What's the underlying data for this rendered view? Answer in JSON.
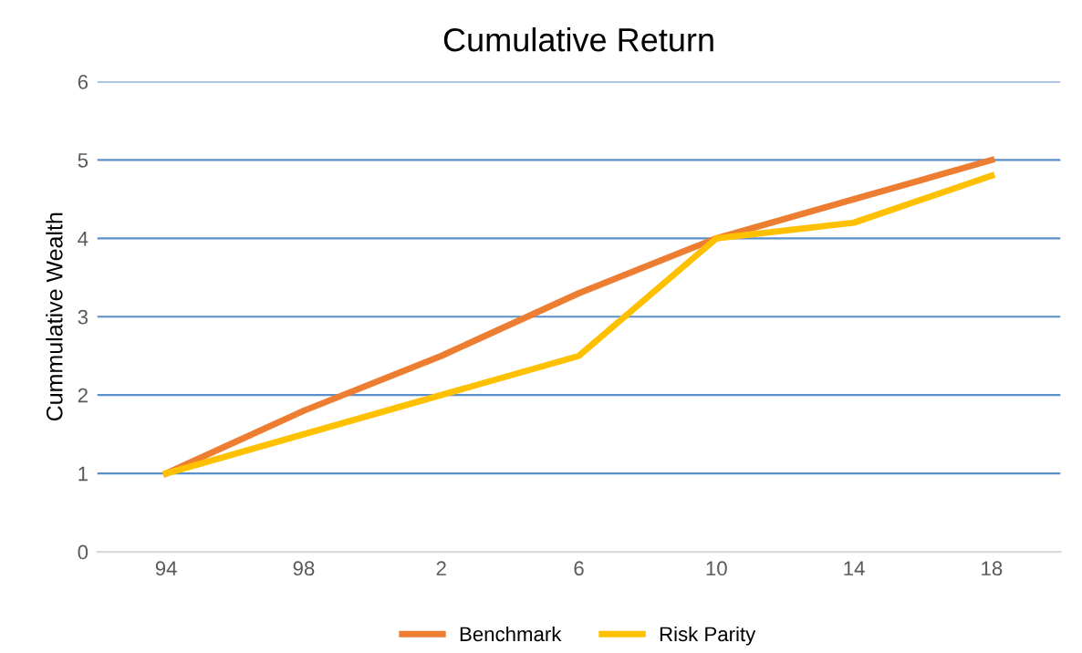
{
  "chart_data": {
    "type": "line",
    "title": "Cumulative Return",
    "ylabel": "Cummulative Wealth",
    "categories": [
      "94",
      "98",
      "2",
      "6",
      "10",
      "14",
      "18"
    ],
    "series": [
      {
        "name": "Benchmark",
        "color": "#ed7d31",
        "values": [
          1,
          1.8,
          2.5,
          3.3,
          4.0,
          4.5,
          5.0
        ]
      },
      {
        "name": "Risk Parity",
        "color": "#ffc000",
        "values": [
          1,
          1.5,
          2.0,
          2.5,
          4.0,
          4.2,
          4.8
        ]
      }
    ],
    "ylim": [
      0,
      6
    ],
    "yticks": [
      0,
      1,
      2,
      3,
      4,
      5,
      6
    ],
    "grid": "y",
    "legend": "bottom",
    "marker": "none",
    "line_style": "solid"
  }
}
